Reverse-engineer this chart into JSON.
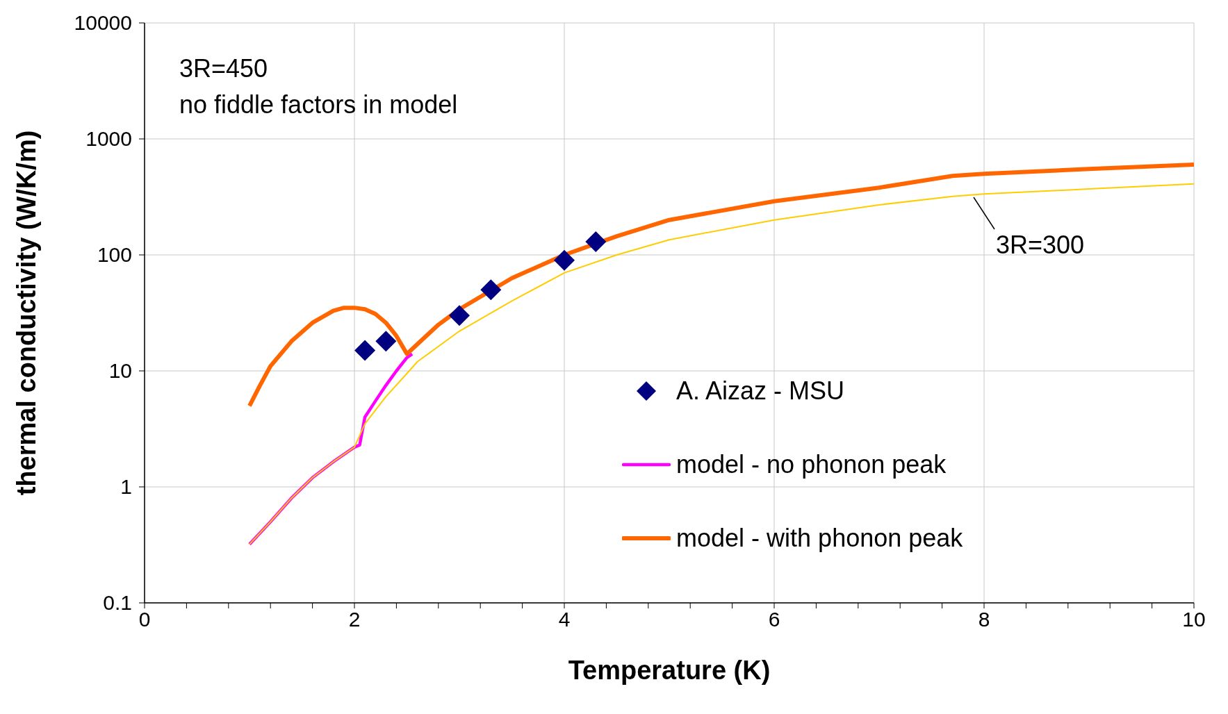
{
  "chart_data": {
    "type": "line",
    "xlabel": "Temperature (K)",
    "ylabel": "thermal conductivity (W/K/m)",
    "log": "y",
    "xlim": [
      0,
      10
    ],
    "ylim": [
      0.1,
      10000
    ],
    "xticks": [
      0,
      {
        "value": 0.4,
        "label": null
      },
      {
        "value": 0.8,
        "label": null
      },
      {
        "value": 1.2,
        "label": null
      },
      {
        "value": 1.6,
        "label": null
      },
      2,
      {
        "value": 2.4,
        "label": null
      },
      {
        "value": 2.8,
        "label": null
      },
      {
        "value": 3.2,
        "label": null
      },
      {
        "value": 3.6,
        "label": null
      },
      4,
      {
        "value": 4.4,
        "label": null
      },
      {
        "value": 4.8,
        "label": null
      },
      {
        "value": 5.2,
        "label": null
      },
      {
        "value": 5.6,
        "label": null
      },
      6,
      {
        "value": 6.4,
        "label": null
      },
      {
        "value": 6.8,
        "label": null
      },
      {
        "value": 7.2,
        "label": null
      },
      {
        "value": 7.6,
        "label": null
      },
      8,
      {
        "value": 8.4,
        "label": null
      },
      {
        "value": 8.8,
        "label": null
      },
      {
        "value": 9.2,
        "label": null
      },
      {
        "value": 9.6,
        "label": null
      },
      10
    ],
    "yticks": [
      0.1,
      1,
      10,
      100,
      1000,
      10000
    ],
    "grid": true,
    "legend": "right",
    "annotations": [
      "3R=450",
      "no fiddle factors in model",
      {
        "text": "3R=300",
        "x": 7.9,
        "y": 330
      }
    ],
    "series": [
      {
        "name": "A. Aizaz - MSU",
        "type": "scatter",
        "marker": "diamond",
        "color": "#000080",
        "x": [
          2.1,
          2.3,
          3.0,
          3.3,
          4.0,
          4.3
        ],
        "values": [
          15,
          18,
          30,
          50,
          90,
          130
        ]
      },
      {
        "name": "model - no phonon peak",
        "color": "#ff00ff",
        "x": [
          1.0,
          1.2,
          1.4,
          1.6,
          1.8,
          2.0,
          2.05,
          2.1,
          2.2,
          2.3,
          2.4,
          2.5,
          2.55
        ],
        "values": [
          0.32,
          0.5,
          0.8,
          1.2,
          1.65,
          2.2,
          2.3,
          4,
          5.5,
          7.5,
          10,
          13,
          14
        ]
      },
      {
        "name": "model - with phonon peak",
        "color": "#ff6600",
        "x": [
          1.0,
          1.1,
          1.2,
          1.4,
          1.6,
          1.8,
          1.9,
          2.0,
          2.1,
          2.2,
          2.3,
          2.4,
          2.5,
          2.6,
          2.8,
          3.0,
          3.5,
          4.0,
          4.5,
          5.0,
          6.0,
          7.0,
          7.7,
          8.0,
          9.0,
          10.0
        ],
        "values": [
          5,
          7.5,
          11,
          18,
          26,
          33,
          35,
          35,
          34,
          31,
          26,
          20,
          14,
          17,
          25,
          34,
          63,
          100,
          145,
          200,
          290,
          380,
          480,
          500,
          550,
          600
        ]
      },
      {
        "color": "#ffcc00",
        "x": [
          1.0,
          1.2,
          1.4,
          1.6,
          1.8,
          2.0,
          2.1,
          2.3,
          2.5,
          2.6,
          3.0,
          3.5,
          4.0,
          4.5,
          5.0,
          6.0,
          7.0,
          7.7,
          8.0,
          9.0,
          10.0
        ],
        "values": [
          0.32,
          0.5,
          0.8,
          1.2,
          1.65,
          2.2,
          3.5,
          6,
          9.5,
          12,
          22,
          40,
          70,
          100,
          135,
          200,
          270,
          320,
          335,
          370,
          410
        ]
      }
    ]
  }
}
